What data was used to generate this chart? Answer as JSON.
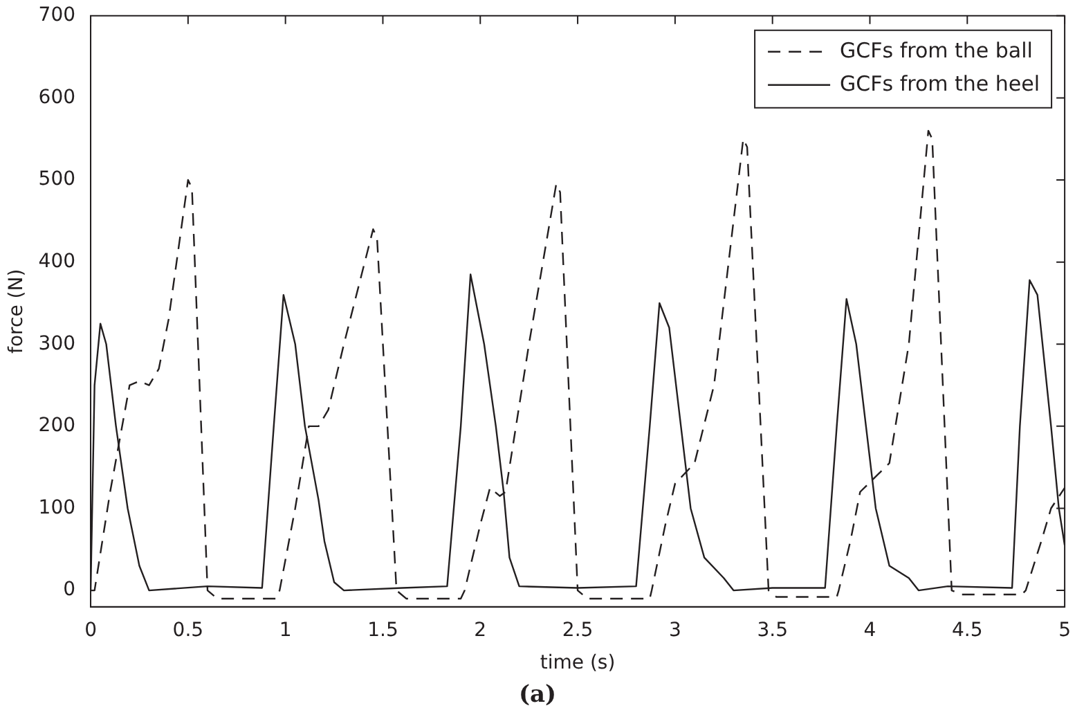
{
  "chart_data": {
    "type": "line",
    "xlabel": "time (s)",
    "ylabel": "force (N)",
    "annotations": [
      "(a)"
    ],
    "xlim": [
      0,
      5
    ],
    "xticks": [
      0,
      0.5,
      1,
      1.5,
      2,
      2.5,
      3,
      3.5,
      4,
      4.5,
      5
    ],
    "ylim": [
      -20,
      700
    ],
    "yticks": [
      0,
      100,
      200,
      300,
      400,
      500,
      600,
      700
    ],
    "grid": false,
    "legend": "top right",
    "marker": "none",
    "series": [
      {
        "name": "GCFs from the ball",
        "color": "#231f20",
        "line_style": "dashed",
        "x": [
          0,
          0.02,
          0.1,
          0.2,
          0.25,
          0.3,
          0.35,
          0.4,
          0.5,
          0.52,
          0.6,
          0.65,
          0.95,
          0.97,
          1.05,
          1.12,
          1.17,
          1.22,
          1.3,
          1.45,
          1.47,
          1.57,
          1.62,
          1.9,
          1.92,
          2.0,
          2.05,
          2.1,
          2.13,
          2.25,
          2.39,
          2.41,
          2.5,
          2.55,
          2.87,
          2.88,
          2.95,
          3.0,
          3.1,
          3.2,
          3.35,
          3.37,
          3.48,
          3.52,
          3.83,
          3.84,
          3.9,
          3.95,
          4.1,
          4.2,
          4.3,
          4.32,
          4.42,
          4.47,
          4.78,
          4.8,
          4.88,
          4.93,
          5.0
        ],
        "values": [
          0,
          0,
          120,
          250,
          255,
          250,
          270,
          330,
          500,
          490,
          0,
          -10,
          -10,
          0,
          100,
          200,
          200,
          220,
          300,
          440,
          430,
          0,
          -10,
          -10,
          0,
          80,
          125,
          115,
          120,
          300,
          495,
          485,
          0,
          -10,
          -10,
          0,
          80,
          130,
          155,
          250,
          550,
          540,
          0,
          -8,
          -8,
          0,
          60,
          120,
          155,
          300,
          560,
          550,
          0,
          -5,
          -5,
          0,
          60,
          100,
          125
        ]
      },
      {
        "name": "GCFs from the heel",
        "color": "#231f20",
        "line_style": "solid",
        "x": [
          0,
          0.02,
          0.05,
          0.08,
          0.13,
          0.19,
          0.25,
          0.3,
          0.6,
          0.88,
          0.94,
          0.99,
          1.05,
          1.1,
          1.17,
          1.2,
          1.25,
          1.3,
          1.6,
          1.83,
          1.9,
          1.95,
          2.02,
          2.08,
          2.12,
          2.15,
          2.2,
          2.5,
          2.8,
          2.87,
          2.92,
          2.97,
          3.03,
          3.08,
          3.15,
          3.25,
          3.3,
          3.5,
          3.77,
          3.83,
          3.88,
          3.93,
          3.98,
          4.03,
          4.1,
          4.2,
          4.25,
          4.4,
          4.73,
          4.77,
          4.82,
          4.86,
          4.93,
          4.97,
          5.0
        ],
        "values": [
          0,
          250,
          325,
          300,
          200,
          100,
          30,
          0,
          5,
          3,
          200,
          360,
          300,
          200,
          110,
          60,
          10,
          0,
          3,
          5,
          200,
          385,
          300,
          200,
          120,
          40,
          5,
          3,
          5,
          200,
          350,
          320,
          200,
          100,
          40,
          15,
          0,
          3,
          3,
          200,
          355,
          300,
          200,
          100,
          30,
          15,
          0,
          5,
          3,
          200,
          378,
          360,
          200,
          100,
          55
        ]
      }
    ]
  }
}
